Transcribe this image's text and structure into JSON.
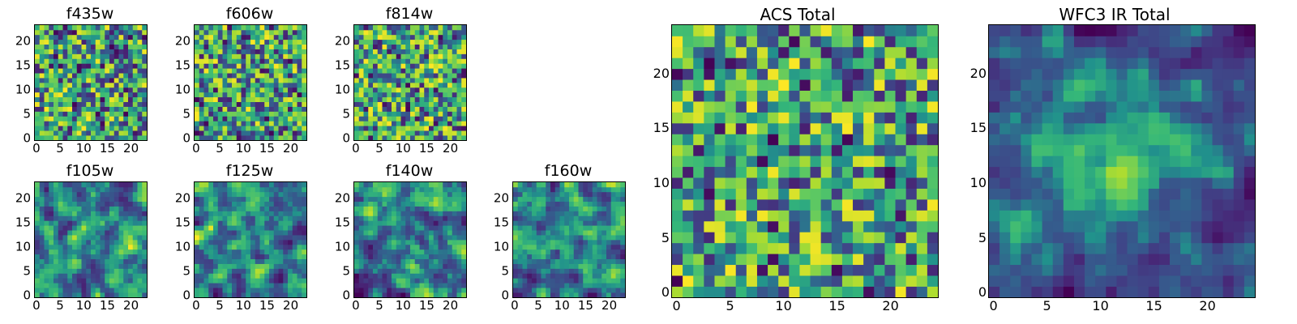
{
  "figure": {
    "background": "#ffffff",
    "colormap": "viridis"
  },
  "chart_data": [
    {
      "type": "heatmap",
      "title": "f435w",
      "grid_size": [
        24,
        24
      ],
      "xlim": [
        -0.5,
        23.5
      ],
      "ylim": [
        -0.5,
        23.5
      ],
      "xticks": [
        0,
        5,
        10,
        15,
        20
      ],
      "yticks": [
        0,
        5,
        10,
        15,
        20
      ],
      "colormap": "viridis",
      "pattern": "uniform-noise",
      "seed": 11,
      "value_range": [
        0,
        1
      ],
      "grid": false
    },
    {
      "type": "heatmap",
      "title": "f606w",
      "grid_size": [
        24,
        24
      ],
      "xlim": [
        -0.5,
        23.5
      ],
      "ylim": [
        -0.5,
        23.5
      ],
      "xticks": [
        0,
        5,
        10,
        15,
        20
      ],
      "yticks": [
        0,
        5,
        10,
        15,
        20
      ],
      "colormap": "viridis",
      "pattern": "uniform-noise",
      "seed": 22,
      "value_range": [
        0,
        1
      ],
      "grid": false
    },
    {
      "type": "heatmap",
      "title": "f814w",
      "grid_size": [
        24,
        24
      ],
      "xlim": [
        -0.5,
        23.5
      ],
      "ylim": [
        -0.5,
        23.5
      ],
      "xticks": [
        0,
        5,
        10,
        15,
        20
      ],
      "yticks": [
        0,
        5,
        10,
        15,
        20
      ],
      "colormap": "viridis",
      "pattern": "uniform-noise",
      "seed": 33,
      "value_range": [
        0,
        1
      ],
      "grid": false
    },
    {
      "type": "heatmap",
      "title": "f105w",
      "grid_size": [
        24,
        24
      ],
      "xlim": [
        -0.5,
        23.5
      ],
      "ylim": [
        -0.5,
        23.5
      ],
      "xticks": [
        0,
        5,
        10,
        15,
        20
      ],
      "yticks": [
        0,
        5,
        10,
        15,
        20
      ],
      "colormap": "viridis",
      "pattern": "smooth-noise",
      "seed": 44,
      "value_range": [
        0,
        1
      ],
      "grid": false
    },
    {
      "type": "heatmap",
      "title": "f125w",
      "grid_size": [
        24,
        24
      ],
      "xlim": [
        -0.5,
        23.5
      ],
      "ylim": [
        -0.5,
        23.5
      ],
      "xticks": [
        0,
        5,
        10,
        15,
        20
      ],
      "yticks": [
        0,
        5,
        10,
        15,
        20
      ],
      "colormap": "viridis",
      "pattern": "smooth-noise",
      "seed": 55,
      "value_range": [
        0,
        1
      ],
      "grid": false
    },
    {
      "type": "heatmap",
      "title": "f140w",
      "grid_size": [
        24,
        24
      ],
      "xlim": [
        -0.5,
        23.5
      ],
      "ylim": [
        -0.5,
        23.5
      ],
      "xticks": [
        0,
        5,
        10,
        15,
        20
      ],
      "yticks": [
        0,
        5,
        10,
        15,
        20
      ],
      "colormap": "viridis",
      "pattern": "smooth-noise",
      "seed": 66,
      "value_range": [
        0,
        1
      ],
      "grid": false
    },
    {
      "type": "heatmap",
      "title": "f160w",
      "grid_size": [
        24,
        24
      ],
      "xlim": [
        -0.5,
        23.5
      ],
      "ylim": [
        -0.5,
        23.5
      ],
      "xticks": [
        0,
        5,
        10,
        15,
        20
      ],
      "yticks": [
        0,
        5,
        10,
        15,
        20
      ],
      "colormap": "viridis",
      "pattern": "smooth-noise",
      "seed": 77,
      "value_range": [
        0,
        1
      ],
      "grid": false
    },
    {
      "type": "heatmap",
      "title": "ACS Total",
      "grid_size": [
        25,
        25
      ],
      "xlim": [
        -0.5,
        24.5
      ],
      "ylim": [
        -0.5,
        24.5
      ],
      "xticks": [
        0,
        5,
        10,
        15,
        20
      ],
      "yticks": [
        0,
        5,
        10,
        15,
        20
      ],
      "colormap": "viridis",
      "pattern": "uniform-noise",
      "seed": 88,
      "value_range": [
        0,
        1
      ],
      "grid": false
    },
    {
      "type": "heatmap",
      "title": "WFC3 IR Total",
      "grid_size": [
        25,
        25
      ],
      "xlim": [
        -0.5,
        24.5
      ],
      "ylim": [
        -0.5,
        24.5
      ],
      "xticks": [
        0,
        5,
        10,
        15,
        20
      ],
      "yticks": [
        0,
        5,
        10,
        15,
        20
      ],
      "colormap": "viridis",
      "pattern": "smooth-noise-with-bright-center",
      "seed": 99,
      "value_range": [
        0,
        1
      ],
      "grid": false
    }
  ]
}
